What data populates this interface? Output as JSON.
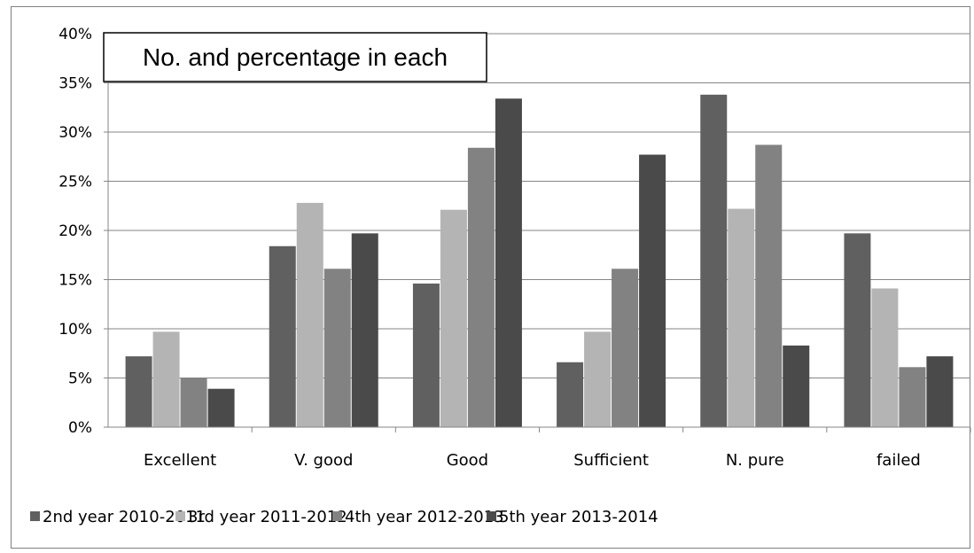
{
  "chart_data": {
    "type": "bar",
    "title": "No. and percentage in each",
    "xlabel": "",
    "ylabel": "",
    "ylim": [
      0,
      0.4
    ],
    "y_ticks": [
      "0%",
      "5%",
      "10%",
      "15%",
      "20%",
      "25%",
      "30%",
      "35%",
      "40%"
    ],
    "grid": true,
    "legend_position": "bottom",
    "categories": [
      "Excellent",
      "V. good",
      "Good",
      "Sufficient",
      "N. pure",
      "failed"
    ],
    "series": [
      {
        "name": "2nd year 2010-2011",
        "color": "#606060",
        "values": [
          0.072,
          0.184,
          0.146,
          0.066,
          0.338,
          0.197
        ]
      },
      {
        "name": "3rd year 2011-2012",
        "color": "#b4b4b4",
        "values": [
          0.097,
          0.228,
          0.221,
          0.097,
          0.222,
          0.141
        ]
      },
      {
        "name": "4th year 2012-2013",
        "color": "#828282",
        "values": [
          0.05,
          0.161,
          0.284,
          0.161,
          0.287,
          0.061
        ]
      },
      {
        "name": "5th year 2013-2014",
        "color": "#4a4a4a",
        "values": [
          0.039,
          0.197,
          0.334,
          0.277,
          0.083,
          0.072
        ]
      }
    ]
  }
}
